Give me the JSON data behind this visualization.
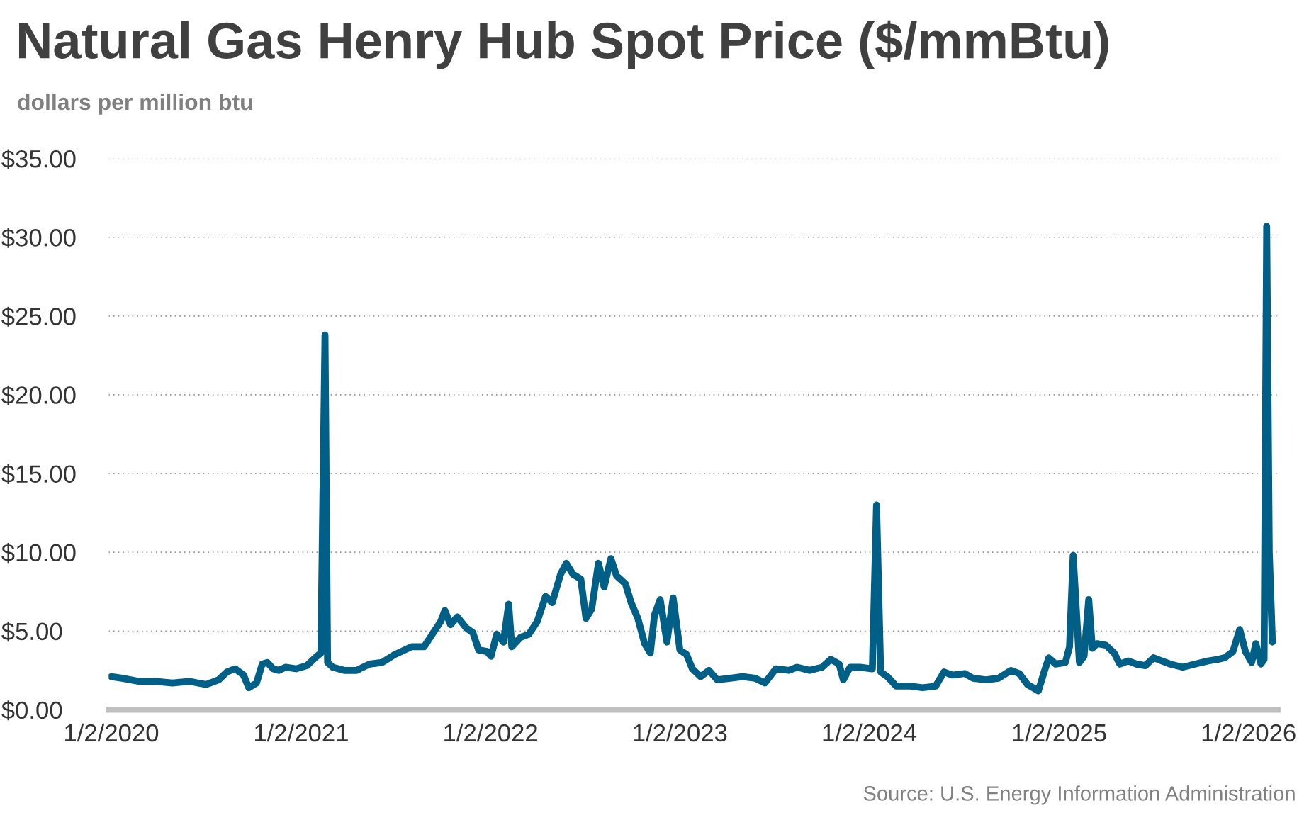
{
  "chart_data": {
    "type": "line",
    "title": "Natural Gas Henry Hub Spot Price ($/mmBtu)",
    "subtitle": "dollars per million btu",
    "annotations": [
      "Source: U.S. Energy Information Administration"
    ],
    "x": [
      "2020-01-02",
      "2020-01-23",
      "2020-02-24",
      "2020-03-28",
      "2020-04-29",
      "2020-05-31",
      "2020-07-03",
      "2020-07-27",
      "2020-08-12",
      "2020-08-28",
      "2020-09-13",
      "2020-09-23",
      "2020-10-08",
      "2020-10-19",
      "2020-10-29",
      "2020-11-09",
      "2020-11-20",
      "2020-12-03",
      "2020-12-23",
      "2021-01-13",
      "2021-01-29",
      "2021-02-09",
      "2021-02-17",
      "2021-02-22",
      "2021-03-04",
      "2021-03-26",
      "2021-04-19",
      "2021-05-14",
      "2021-06-07",
      "2021-07-01",
      "2021-08-03",
      "2021-08-27",
      "2021-09-12",
      "2021-09-28",
      "2021-10-06",
      "2021-10-17",
      "2021-10-30",
      "2021-11-16",
      "2021-11-29",
      "2021-12-10",
      "2021-12-26",
      "2022-01-03",
      "2022-01-14",
      "2022-01-27",
      "2022-02-06",
      "2022-02-12",
      "2022-03-01",
      "2022-03-17",
      "2022-04-02",
      "2022-04-18",
      "2022-05-01",
      "2022-05-17",
      "2022-05-28",
      "2022-06-10",
      "2022-06-25",
      "2022-07-05",
      "2022-07-16",
      "2022-07-29",
      "2022-08-09",
      "2022-08-22",
      "2022-09-02",
      "2022-09-19",
      "2022-09-30",
      "2022-10-13",
      "2022-10-26",
      "2022-11-06",
      "2022-11-14",
      "2022-11-25",
      "2022-12-08",
      "2022-12-20",
      "2023-01-02",
      "2023-01-15",
      "2023-01-26",
      "2023-02-11",
      "2023-02-27",
      "2023-03-15",
      "2023-04-09",
      "2023-05-03",
      "2023-05-27",
      "2023-06-15",
      "2023-07-06",
      "2023-07-31",
      "2023-08-16",
      "2023-09-09",
      "2023-10-03",
      "2023-10-20",
      "2023-11-05",
      "2023-11-13",
      "2023-11-26",
      "2023-12-15",
      "2024-01-08",
      "2024-01-16",
      "2024-01-24",
      "2024-02-06",
      "2024-02-23",
      "2024-03-21",
      "2024-04-14",
      "2024-05-09",
      "2024-05-25",
      "2024-06-10",
      "2024-07-04",
      "2024-07-20",
      "2024-08-14",
      "2024-09-07",
      "2024-10-01",
      "2024-10-17",
      "2024-11-02",
      "2024-11-23",
      "2024-12-05",
      "2024-12-13",
      "2024-12-26",
      "2025-01-14",
      "2025-01-22",
      "2025-01-29",
      "2025-02-10",
      "2025-02-19",
      "2025-02-28",
      "2025-03-07",
      "2025-03-16",
      "2025-04-02",
      "2025-04-18",
      "2025-04-29",
      "2025-05-15",
      "2025-05-31",
      "2025-06-17",
      "2025-07-03",
      "2025-07-19",
      "2025-08-04",
      "2025-08-28",
      "2025-09-21",
      "2025-10-16",
      "2025-11-04",
      "2025-11-17",
      "2025-12-03",
      "2025-12-16",
      "2025-12-27",
      "2026-01-08",
      "2026-01-16",
      "2026-01-26",
      "2026-02-01",
      "2026-02-06",
      "2026-02-11",
      "2026-02-17"
    ],
    "series": [
      {
        "color": "#005f86",
        "values": [
          2.1,
          2.0,
          1.8,
          1.8,
          1.7,
          1.8,
          1.6,
          1.9,
          2.4,
          2.6,
          2.2,
          1.4,
          1.7,
          2.9,
          3.0,
          2.6,
          2.5,
          2.7,
          2.6,
          2.8,
          3.3,
          3.6,
          23.8,
          3.0,
          2.7,
          2.5,
          2.5,
          2.9,
          3.0,
          3.5,
          4.0,
          4.0,
          4.8,
          5.6,
          6.3,
          5.4,
          5.9,
          5.2,
          4.9,
          3.8,
          3.7,
          3.4,
          4.8,
          4.3,
          6.7,
          4.0,
          4.6,
          4.8,
          5.6,
          7.2,
          6.8,
          8.6,
          9.3,
          8.6,
          8.3,
          5.8,
          6.4,
          9.3,
          7.8,
          9.6,
          8.5,
          8.0,
          6.8,
          5.8,
          4.2,
          3.6,
          6.0,
          7.0,
          4.3,
          7.1,
          3.8,
          3.5,
          2.6,
          2.1,
          2.5,
          1.9,
          2.0,
          2.1,
          2.0,
          1.7,
          2.6,
          2.5,
          2.7,
          2.5,
          2.7,
          3.2,
          2.9,
          1.9,
          2.7,
          2.7,
          2.6,
          13.0,
          2.4,
          2.1,
          1.5,
          1.5,
          1.4,
          1.5,
          2.4,
          2.2,
          2.3,
          2.0,
          1.9,
          2.0,
          2.5,
          2.3,
          1.6,
          1.2,
          2.5,
          3.3,
          2.9,
          3.0,
          4.0,
          9.8,
          3.0,
          3.4,
          7.0,
          3.9,
          4.2,
          4.1,
          3.6,
          2.9,
          3.1,
          2.9,
          2.8,
          3.3,
          3.1,
          2.9,
          2.7,
          2.9,
          3.1,
          3.2,
          3.3,
          3.7,
          5.1,
          3.7,
          3.0,
          4.2,
          2.9,
          3.2,
          30.7,
          10.0,
          4.3
        ]
      }
    ],
    "xlim": [
      "2019-12-28",
      "2026-02-27"
    ],
    "xticks": [
      {
        "value": "2020-01-02",
        "label": "1/2/2020"
      },
      {
        "value": "2021-01-02",
        "label": "1/2/2021"
      },
      {
        "value": "2022-01-02",
        "label": "1/2/2022"
      },
      {
        "value": "2023-01-02",
        "label": "1/2/2023"
      },
      {
        "value": "2024-01-02",
        "label": "1/2/2024"
      },
      {
        "value": "2025-01-02",
        "label": "1/2/2025"
      },
      {
        "value": "2026-01-02",
        "label": "1/2/2026"
      }
    ],
    "ylim": [
      0,
      35
    ],
    "yticks": [
      {
        "value": 0,
        "label": "$0.00"
      },
      {
        "value": 5,
        "label": "$5.00"
      },
      {
        "value": 10,
        "label": "$10.00"
      },
      {
        "value": 15,
        "label": "$15.00"
      },
      {
        "value": 20,
        "label": "$20.00"
      },
      {
        "value": 25,
        "label": "$25.00"
      },
      {
        "value": 30,
        "label": "$30.00"
      },
      {
        "value": 35,
        "label": "$35.00"
      }
    ],
    "grid": "y",
    "line_style": "solid",
    "marker": "none"
  }
}
